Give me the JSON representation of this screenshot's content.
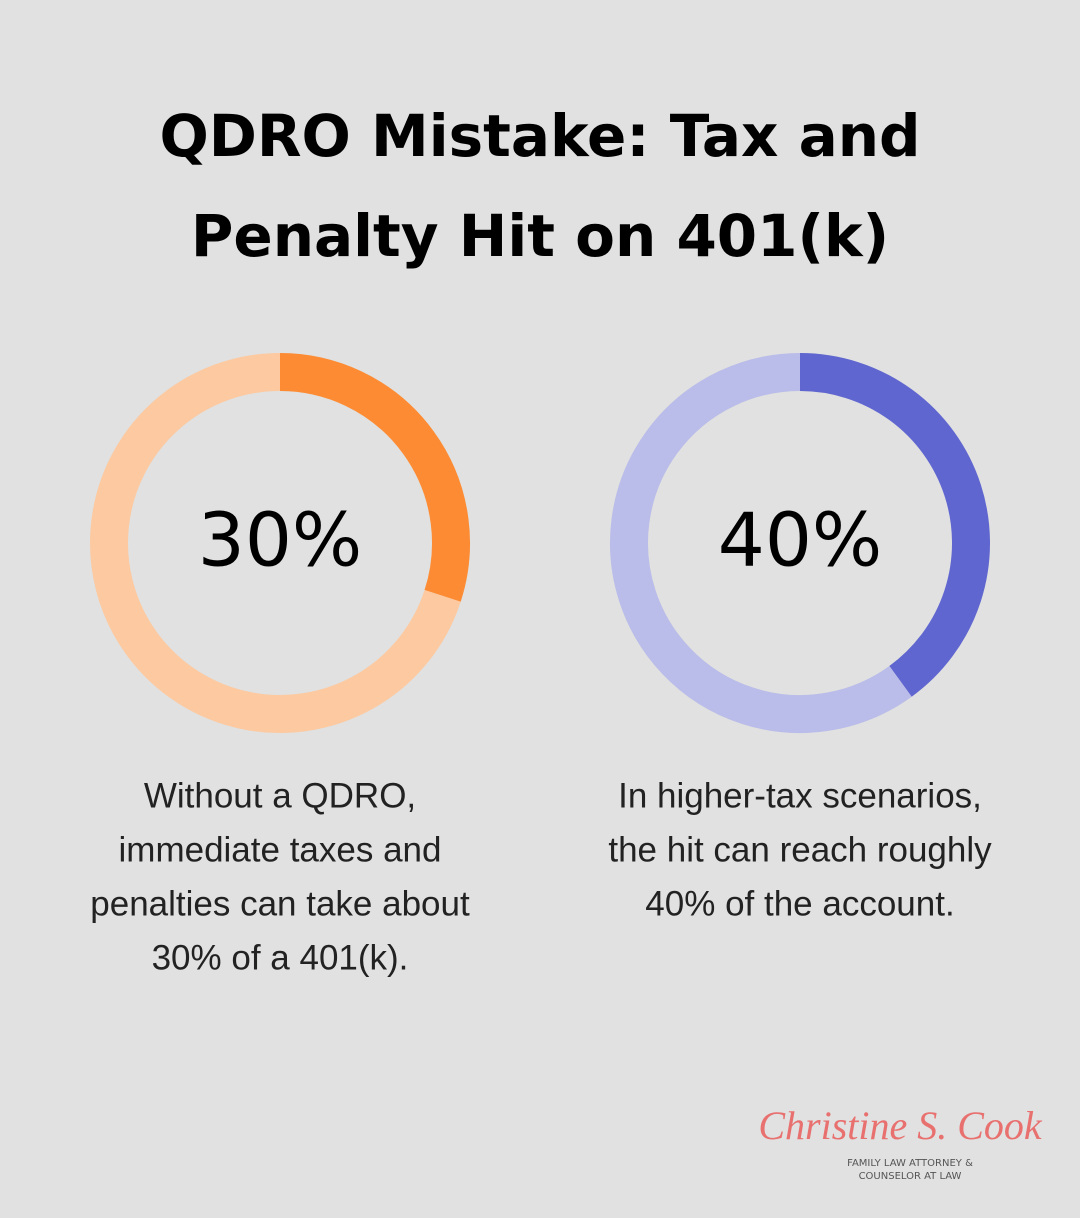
{
  "title": [
    "QDRO Mistake: Tax and",
    "Penalty Hit on 401(k)"
  ],
  "chart_data": [
    {
      "type": "donut",
      "values": [
        30,
        70
      ],
      "colors": [
        "#fd8b33",
        "#fdc9a0"
      ],
      "label": "30%",
      "caption": [
        "Without a QDRO,",
        "immediate taxes and",
        "penalties can take about",
        "30% of a 401(k)."
      ]
    },
    {
      "type": "donut",
      "values": [
        40,
        60
      ],
      "colors": [
        "#6066d0",
        "#babce9"
      ],
      "label": "40%",
      "caption": [
        "In higher-tax scenarios,",
        "the hit can reach roughly",
        "40% of the account."
      ]
    }
  ],
  "logo": {
    "name": "Christine S. Cook",
    "tagline": [
      "FAMILY LAW ATTORNEY &",
      "COUNSELOR AT LAW"
    ]
  }
}
